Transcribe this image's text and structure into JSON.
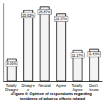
{
  "chart_data": {
    "type": "bar",
    "title": "Figure 4: Opinion of respondents regarding incidence of adverse effects related",
    "categories": [
      "Totally Disagree",
      "Disagree",
      "Neutral",
      "Agree",
      "Totally Agree",
      "Don't know"
    ],
    "values": [
      8.09,
      25.63,
      26.87,
      24.37,
      11.17,
      11.63
    ],
    "value_labels": [
      "8.09%",
      "25.63%",
      "26.87%",
      "24.37%",
      "11.17%",
      "11.63%"
    ],
    "color": "#f4f4f4",
    "ylim": [
      0,
      28
    ],
    "grid": false,
    "data_labels": true,
    "tick_labels": "x"
  }
}
